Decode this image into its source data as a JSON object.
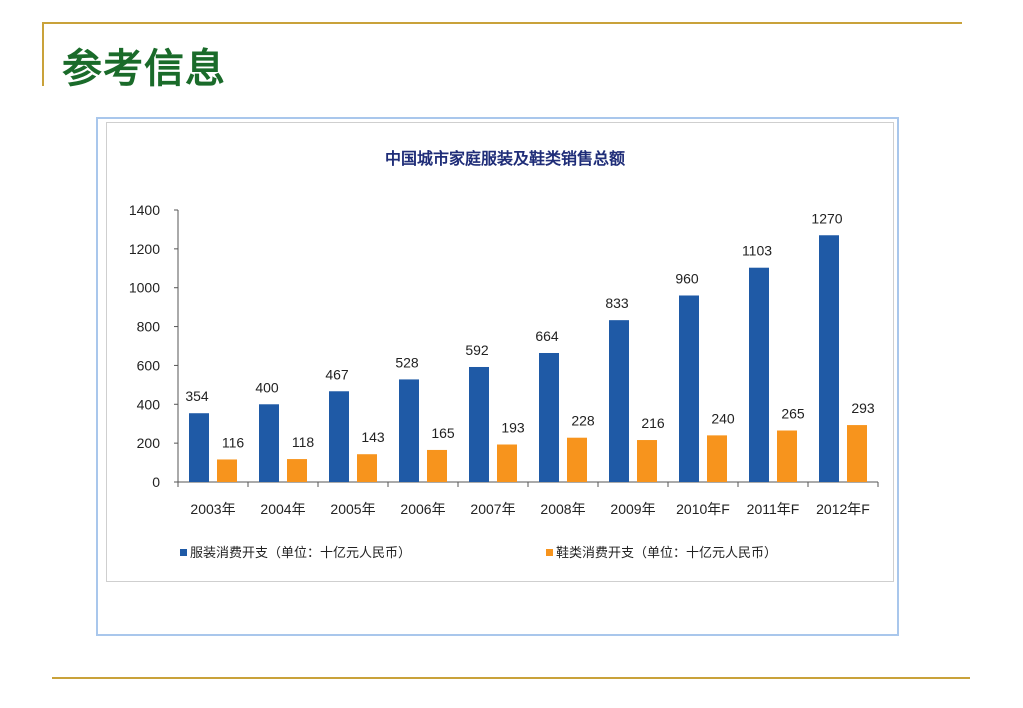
{
  "slide": {
    "title": "参考信息"
  },
  "chart_data": {
    "type": "bar",
    "title": "中国城市家庭服装及鞋类销售总额",
    "categories": [
      "2003年",
      "2004年",
      "2005年",
      "2006年",
      "2007年",
      "2008年",
      "2009年",
      "2010年F",
      "2011年F",
      "2012年F"
    ],
    "series": [
      {
        "name": "服装消费开支（单位：十亿元人民币）",
        "color": "#1f5aa6",
        "values": [
          354,
          400,
          467,
          528,
          592,
          664,
          833,
          960,
          1103,
          1270
        ]
      },
      {
        "name": "鞋类消费开支（单位：十亿元人民币）",
        "color": "#f7941d",
        "values": [
          116,
          118,
          143,
          165,
          193,
          228,
          216,
          240,
          265,
          293
        ]
      }
    ],
    "ylim": [
      0,
      1400
    ],
    "yticks": [
      0,
      200,
      400,
      600,
      800,
      1000,
      1200,
      1400
    ],
    "xlabel": "",
    "ylabel": "",
    "grid": false,
    "legend_position": "bottom"
  }
}
